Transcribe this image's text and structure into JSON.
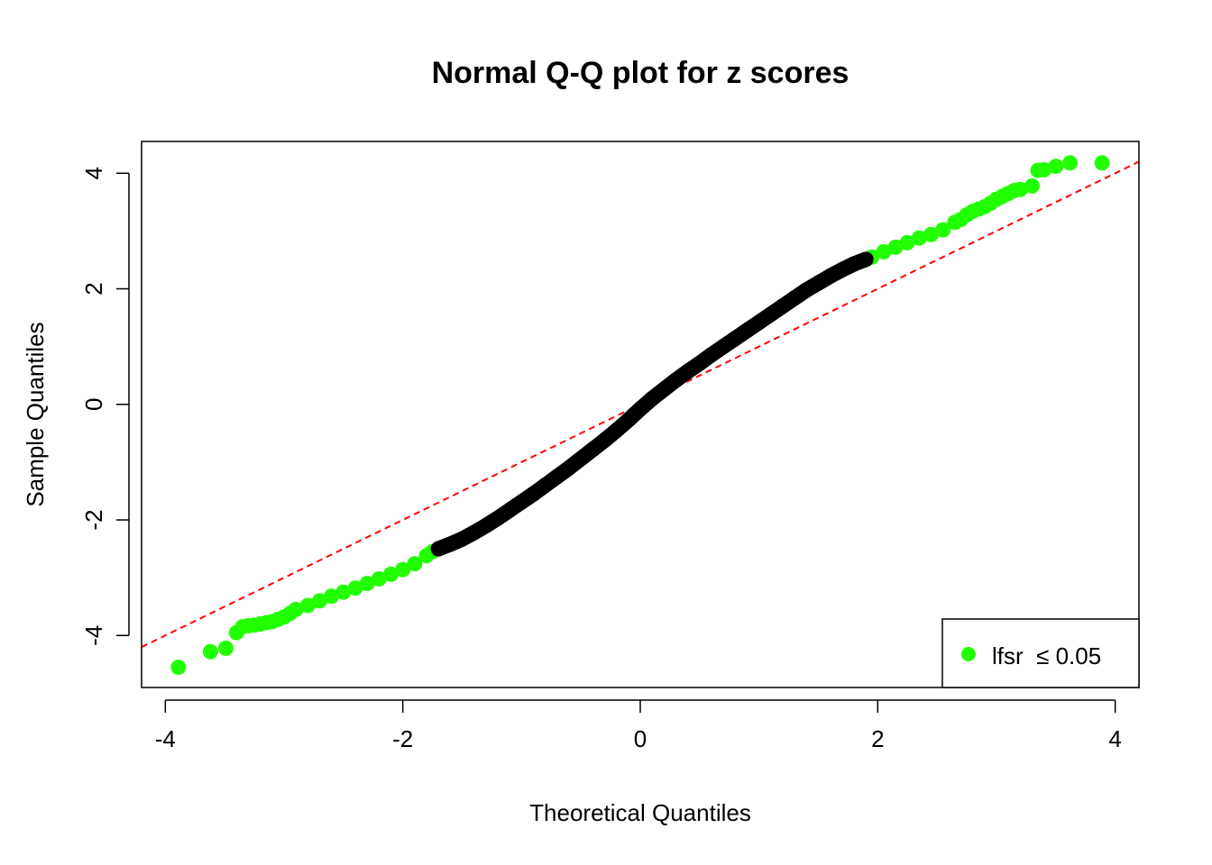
{
  "chart_data": {
    "type": "scatter",
    "title": "Normal Q-Q plot for z scores",
    "xlabel": "Theoretical Quantiles",
    "ylabel": "Sample Quantiles",
    "xlim": [
      -4.2,
      4.2
    ],
    "ylim": [
      -4.9,
      4.55
    ],
    "xticks": [
      -4,
      -2,
      0,
      2,
      4
    ],
    "yticks": [
      -4,
      -2,
      0,
      2,
      4
    ],
    "xtick_labels": [
      "-4",
      "-2",
      "0",
      "2",
      "4"
    ],
    "ytick_labels": [
      "-4",
      "-2",
      "0",
      "2",
      "4"
    ],
    "grid": false,
    "legend": {
      "position": "bottom-right",
      "entries": [
        {
          "label": "lfsr  ≤ 0.05",
          "color": "#22ff00"
        }
      ]
    },
    "reference_line": {
      "style": "dashed",
      "color": "#ff0000",
      "intercept": 0.0,
      "slope": 1.0
    },
    "colors": {
      "significant": "#22ff00",
      "nonsignificant": "#000000"
    },
    "series": [
      {
        "name": "lfsr  ≤ 0.05",
        "color": "#22ff00",
        "x": [
          -3.89,
          -3.62,
          -3.49,
          -3.4,
          -3.35,
          -3.3,
          -3.25,
          -3.2,
          -3.15,
          -3.1,
          -3.05,
          -3.0,
          -2.95,
          -2.9,
          -2.8,
          -2.7,
          -2.6,
          -2.5,
          -2.4,
          -2.3,
          -2.2,
          -2.1,
          -2.0,
          -1.9,
          -1.8,
          -1.75,
          1.95,
          2.05,
          2.15,
          2.25,
          2.35,
          2.45,
          2.55,
          2.65,
          2.7,
          2.75,
          2.8,
          2.85,
          2.9,
          2.95,
          3.0,
          3.05,
          3.1,
          3.15,
          3.2,
          3.3,
          3.35,
          3.4,
          3.5,
          3.62,
          3.89
        ],
        "y": [
          -4.55,
          -4.28,
          -4.22,
          -3.95,
          -3.85,
          -3.83,
          -3.82,
          -3.8,
          -3.78,
          -3.76,
          -3.72,
          -3.68,
          -3.62,
          -3.55,
          -3.48,
          -3.4,
          -3.32,
          -3.25,
          -3.18,
          -3.1,
          -3.02,
          -2.94,
          -2.86,
          -2.76,
          -2.62,
          -2.55,
          2.55,
          2.64,
          2.72,
          2.8,
          2.88,
          2.94,
          3.02,
          3.15,
          3.2,
          3.28,
          3.34,
          3.38,
          3.42,
          3.48,
          3.55,
          3.6,
          3.65,
          3.7,
          3.72,
          3.78,
          4.05,
          4.06,
          4.12,
          4.18,
          4.18
        ]
      },
      {
        "name": "",
        "color": "#000000",
        "x": [
          -1.7,
          -1.6,
          -1.5,
          -1.4,
          -1.3,
          -1.2,
          -1.1,
          -1.0,
          -0.9,
          -0.8,
          -0.7,
          -0.6,
          -0.5,
          -0.4,
          -0.3,
          -0.2,
          -0.1,
          0.0,
          0.1,
          0.2,
          0.3,
          0.4,
          0.5,
          0.6,
          0.7,
          0.8,
          0.9,
          1.0,
          1.1,
          1.2,
          1.3,
          1.4,
          1.5,
          1.6,
          1.7,
          1.8,
          1.9
        ],
        "y": [
          -2.5,
          -2.42,
          -2.33,
          -2.22,
          -2.1,
          -1.97,
          -1.83,
          -1.69,
          -1.55,
          -1.4,
          -1.25,
          -1.1,
          -0.94,
          -0.78,
          -0.62,
          -0.45,
          -0.27,
          -0.08,
          0.1,
          0.26,
          0.42,
          0.57,
          0.71,
          0.86,
          1.0,
          1.14,
          1.28,
          1.42,
          1.56,
          1.7,
          1.84,
          1.98,
          2.1,
          2.22,
          2.33,
          2.43,
          2.51
        ]
      }
    ]
  }
}
